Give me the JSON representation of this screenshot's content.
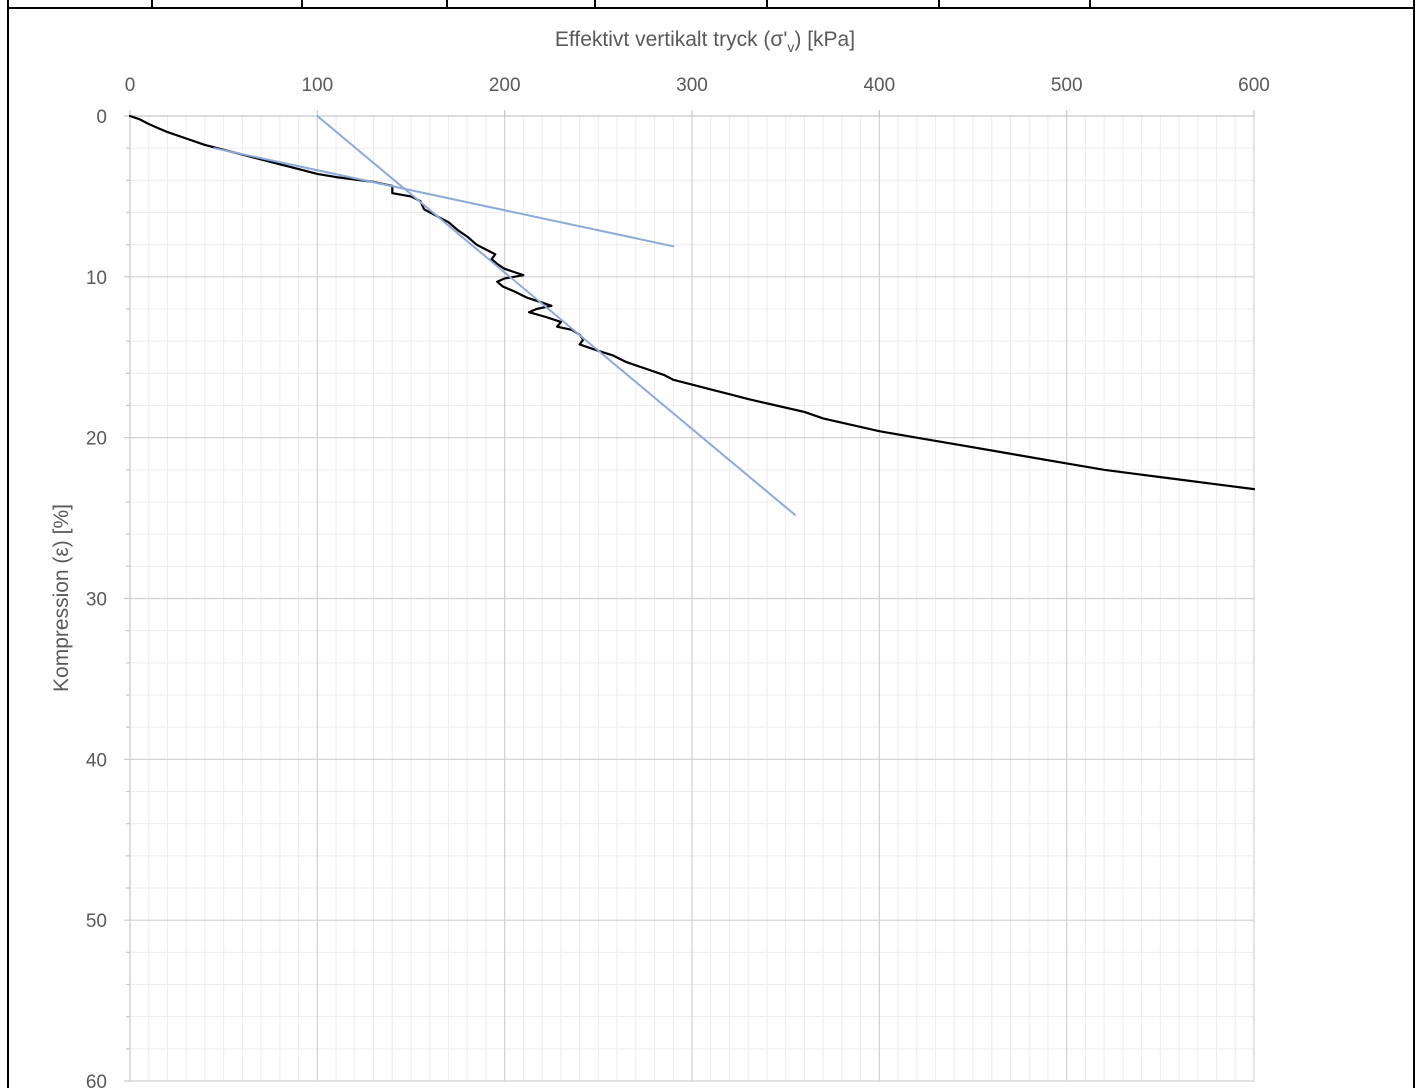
{
  "chart_data": {
    "type": "line",
    "xlabel": "Effektivt vertikalt tryck (σ'v) [kPa]",
    "xlabel_parts": {
      "prefix": "Effektivt vertikalt tryck (σ'",
      "subscript": "v",
      "suffix": ") [kPa]"
    },
    "ylabel": "Kompression (ε) [%]",
    "x_axis_position": "top",
    "y_axis_reversed": true,
    "xlim": [
      0,
      600
    ],
    "ylim": [
      0,
      60
    ],
    "x_ticks": [
      "0",
      "100",
      "200",
      "300",
      "400",
      "500",
      "600"
    ],
    "y_ticks": [
      "0",
      "10",
      "20",
      "30",
      "40",
      "50",
      "60"
    ],
    "grid": true,
    "minor_grid": true,
    "series": [
      {
        "color": "#000000",
        "points": [
          [
            0,
            0
          ],
          [
            5,
            0.2
          ],
          [
            10,
            0.5
          ],
          [
            15,
            0.75
          ],
          [
            20,
            1.0
          ],
          [
            30,
            1.4
          ],
          [
            40,
            1.8
          ],
          [
            50,
            2.1
          ],
          [
            60,
            2.4
          ],
          [
            70,
            2.7
          ],
          [
            80,
            3.0
          ],
          [
            90,
            3.3
          ],
          [
            100,
            3.6
          ],
          [
            110,
            3.8
          ],
          [
            120,
            3.95
          ],
          [
            130,
            4.1
          ],
          [
            140,
            4.35
          ],
          [
            140,
            4.8
          ],
          [
            150,
            5.0
          ],
          [
            155,
            5.3
          ],
          [
            157,
            5.8
          ],
          [
            165,
            6.3
          ],
          [
            170,
            6.6
          ],
          [
            175,
            7.1
          ],
          [
            180,
            7.5
          ],
          [
            185,
            8.0
          ],
          [
            190,
            8.3
          ],
          [
            195,
            8.6
          ],
          [
            193,
            8.9
          ],
          [
            196,
            9.2
          ],
          [
            200,
            9.5
          ],
          [
            205,
            9.7
          ],
          [
            210,
            9.9
          ],
          [
            200,
            10.1
          ],
          [
            196,
            10.3
          ],
          [
            199,
            10.6
          ],
          [
            205,
            10.9
          ],
          [
            212,
            11.3
          ],
          [
            220,
            11.6
          ],
          [
            225,
            11.8
          ],
          [
            217,
            12.0
          ],
          [
            213,
            12.2
          ],
          [
            222,
            12.5
          ],
          [
            230,
            12.8
          ],
          [
            228,
            13.1
          ],
          [
            236,
            13.3
          ],
          [
            240,
            13.6
          ],
          [
            242,
            13.9
          ],
          [
            240,
            14.2
          ],
          [
            250,
            14.6
          ],
          [
            258,
            14.9
          ],
          [
            265,
            15.3
          ],
          [
            275,
            15.7
          ],
          [
            285,
            16.1
          ],
          [
            290,
            16.4
          ],
          [
            300,
            16.7
          ],
          [
            310,
            17.0
          ],
          [
            320,
            17.3
          ],
          [
            330,
            17.6
          ],
          [
            345,
            18.0
          ],
          [
            360,
            18.4
          ],
          [
            370,
            18.8
          ],
          [
            385,
            19.2
          ],
          [
            400,
            19.6
          ],
          [
            420,
            20.0
          ],
          [
            440,
            20.4
          ],
          [
            460,
            20.8
          ],
          [
            480,
            21.2
          ],
          [
            500,
            21.6
          ],
          [
            520,
            22.0
          ],
          [
            540,
            22.3
          ],
          [
            560,
            22.6
          ],
          [
            580,
            22.9
          ],
          [
            600,
            23.2
          ]
        ]
      },
      {
        "color": "#8eaadb",
        "points": [
          [
            45,
            2.0
          ],
          [
            290,
            8.1
          ]
        ]
      },
      {
        "color": "#8eaadb",
        "points": [
          [
            100,
            0.0
          ],
          [
            355,
            24.8
          ]
        ]
      }
    ]
  }
}
